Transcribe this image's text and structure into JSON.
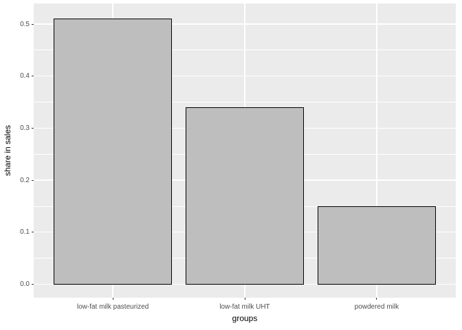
{
  "chart_data": {
    "type": "bar",
    "categories": [
      "low-fat milk pasteurized",
      "low-fat milk UHT",
      "powdered milk"
    ],
    "values": [
      0.51,
      0.34,
      0.15
    ],
    "title": "",
    "xlabel": "groups",
    "ylabel": "share in sales",
    "ylim": [
      0,
      0.54
    ],
    "yticks": [
      0.0,
      0.1,
      0.2,
      0.3,
      0.4,
      0.5
    ],
    "ytick_labels": [
      "0.0",
      "0.1",
      "0.2",
      "0.3",
      "0.4",
      "0.5"
    ],
    "yminor_step": 0.05,
    "grid": "horizontal major+minor white lines, vertical major white line at each category center",
    "legend": "none"
  },
  "style": {
    "plot_background": "#FFFFFF",
    "panel_background": "#EBEBEB",
    "grid_color": "#FFFFFF",
    "bar_fill": "#BEBEBE",
    "bar_stroke": "#000000",
    "tick_mark_color": "#333333",
    "tick_label_color": "#4D4D4D",
    "axis_title_color": "#000000"
  }
}
